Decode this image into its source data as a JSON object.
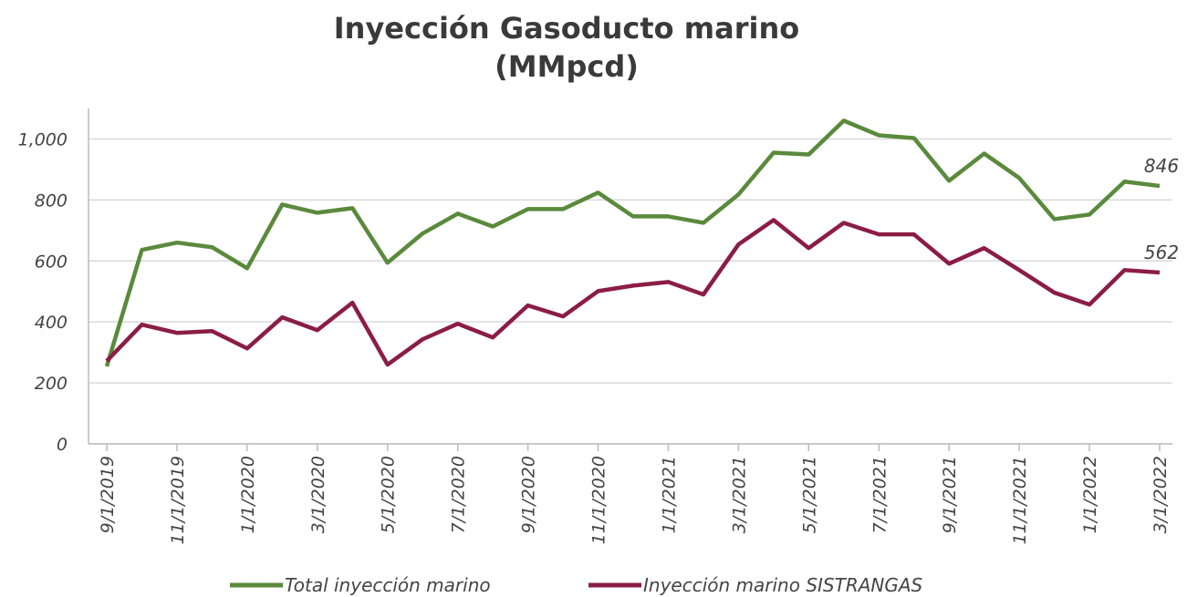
{
  "chart_data": {
    "type": "line",
    "title": "Inyección Gasoducto marino",
    "subtitle": "(MMpcd)",
    "categories": [
      "9/1/2019",
      null,
      "11/1/2019",
      null,
      "1/1/2020",
      null,
      "3/1/2020",
      null,
      "5/1/2020",
      null,
      "7/1/2020",
      null,
      "9/1/2020",
      null,
      "11/1/2020",
      null,
      "1/1/2021",
      null,
      "3/1/2021",
      null,
      "5/1/2021",
      null,
      "7/1/2021",
      null,
      "9/1/2021",
      null,
      "11/1/2021",
      null,
      "1/1/2022",
      null,
      "3/1/2022"
    ],
    "series": [
      {
        "name": "Total inyección marino",
        "color": "#5a8a3c",
        "values": [
          254,
          636,
          660,
          645,
          576,
          785,
          758,
          773,
          594,
          690,
          755,
          713,
          770,
          770,
          824,
          746,
          746,
          725,
          818,
          955,
          949,
          1060,
          1012,
          1003,
          863,
          952,
          872,
          737,
          752,
          860,
          846
        ]
      },
      {
        "name": "Inyección marino SISTRANGAS",
        "color": "#8b1d45",
        "values": [
          272,
          391,
          364,
          370,
          313,
          415,
          373,
          463,
          260,
          343,
          394,
          349,
          454,
          418,
          501,
          519,
          531,
          490,
          654,
          734,
          642,
          725,
          687,
          687,
          591,
          642,
          570,
          496,
          457,
          570,
          562
        ]
      }
    ],
    "ylim": [
      0,
      1100
    ],
    "yticks": [
      0,
      200,
      400,
      600,
      800,
      {
        "value": 1000,
        "label": "1,000"
      }
    ],
    "grid": true,
    "legend": "bottom"
  }
}
